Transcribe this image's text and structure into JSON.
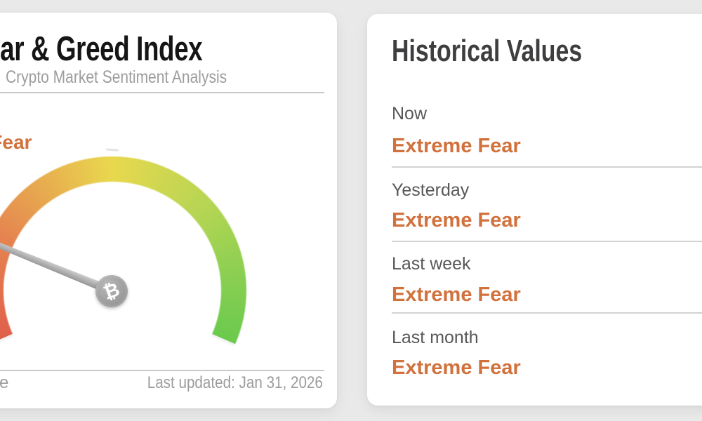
{
  "theme": {
    "page_background": "#e9e9e9",
    "card_background": "#ffffff",
    "accent_orange": "#d1713c",
    "title_color": "#151515",
    "muted_gray": "#9d9d9d",
    "label_gray": "#58585a"
  },
  "gauge_card": {
    "title": "Fear & Greed Index",
    "subtitle": "Crypto Market Sentiment Analysis",
    "current_sentiment": "Extreme Fear",
    "source_fragment": "e",
    "last_updated": "Last updated: Jan 31, 2026",
    "gauge": {
      "type": "gauge",
      "sentiment": "Extreme Fear",
      "needle_angle_deg": 22,
      "arc_from_deg": 246.5,
      "arc_sweep_deg": 227,
      "gradient": [
        {
          "color": "#e0604a",
          "deg": 0
        },
        {
          "color": "#e58450",
          "deg": 50
        },
        {
          "color": "#e9d84e",
          "deg": 113
        },
        {
          "color": "#b5d553",
          "deg": 162
        },
        {
          "color": "#8ccf52",
          "deg": 195
        },
        {
          "color": "#6aca4d",
          "deg": 227
        }
      ],
      "bitcoin_symbol": "₿"
    }
  },
  "history_card": {
    "title": "Historical Values",
    "rows": [
      {
        "label": "Now",
        "value": "Extreme Fear"
      },
      {
        "label": "Yesterday",
        "value": "Extreme Fear"
      },
      {
        "label": "Last week",
        "value": "Extreme Fear"
      },
      {
        "label": "Last month",
        "value": "Extreme Fear"
      }
    ]
  }
}
